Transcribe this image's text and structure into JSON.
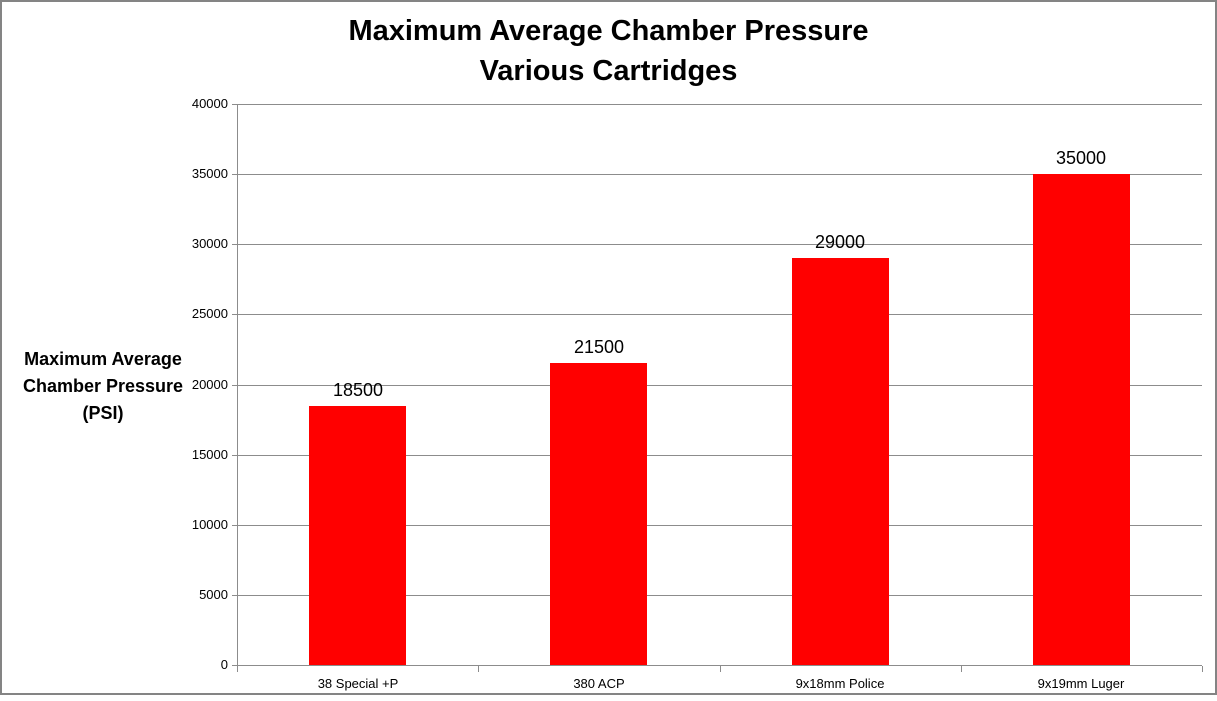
{
  "title": {
    "line1": "Maximum Average Chamber Pressure",
    "line2": "Various Cartridges"
  },
  "y_axis_title": {
    "line1": "Maximum Average",
    "line2": "Chamber Pressure",
    "line3": "(PSI)"
  },
  "chart_data": {
    "type": "bar",
    "title": "Maximum Average Chamber Pressure — Various Cartridges",
    "categories": [
      "38 Special +P",
      "380 ACP",
      "9x18mm Police",
      "9x19mm Luger"
    ],
    "values": [
      18500,
      21500,
      29000,
      35000
    ],
    "data_labels": [
      "18500",
      "21500",
      "29000",
      "35000"
    ],
    "xlabel": "",
    "ylabel": "Maximum Average Chamber Pressure (PSI)",
    "ylim": [
      0,
      40000
    ],
    "ytick_step": 5000,
    "ytick_labels": [
      "0",
      "5000",
      "10000",
      "15000",
      "20000",
      "25000",
      "30000",
      "35000",
      "40000"
    ],
    "grid": true,
    "legend_position": "none",
    "bar_color": "#ff0000",
    "gridline_color": "#8c8c8c",
    "axis_color": "#8c8c8c",
    "frame_color": "#848484",
    "text_color": "#000000",
    "bar_gap_ratio": 0.6
  }
}
